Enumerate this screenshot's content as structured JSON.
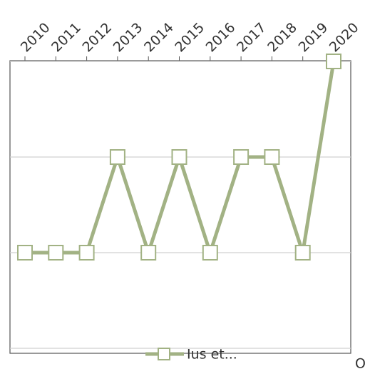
{
  "chart_data": {
    "type": "line",
    "categories": [
      "2010",
      "2011",
      "2012",
      "2013",
      "2014",
      "2015",
      "2016",
      "2017",
      "2018",
      "2019",
      "2020"
    ],
    "series": [
      {
        "name": "Ius et...",
        "color": "#a2b284",
        "values": [
          1,
          1,
          1,
          2,
          1,
          2,
          1,
          2,
          2,
          1,
          3
        ]
      }
    ],
    "ylim": [
      0,
      3
    ],
    "yticks": [
      0,
      1,
      2,
      3
    ],
    "grid": true,
    "legend": "bottom",
    "annotation": "O"
  }
}
